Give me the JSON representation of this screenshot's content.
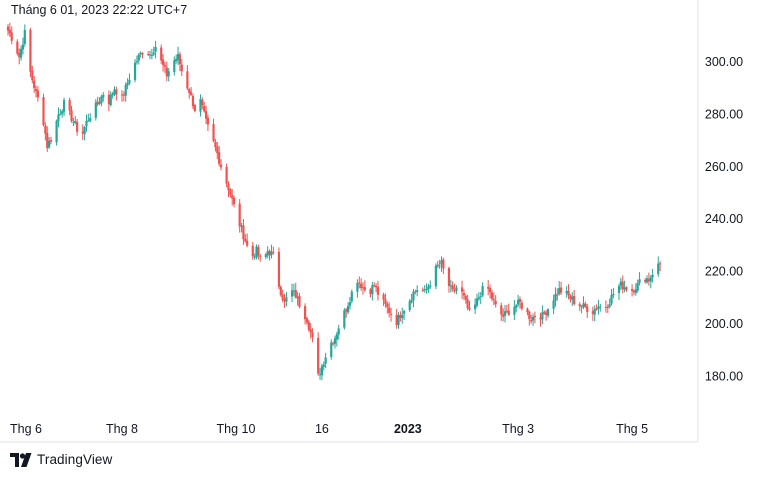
{
  "header": {
    "timestamp": "Tháng 6 01, 2023 22:22 UTC+7"
  },
  "brand": {
    "name": "TradingView",
    "logo": "tradingview-logo-icon"
  },
  "colors": {
    "up": "#26a69a",
    "down": "#ef5350",
    "axis_border": "#e0e3eb",
    "text": "#131722"
  },
  "chart_data": {
    "type": "candlestick",
    "title": "",
    "xlabel": "",
    "ylabel": "",
    "ylim": [
      168,
      316
    ],
    "grid": false,
    "y_ticks": [
      {
        "label": "300.00",
        "value": 300
      },
      {
        "label": "280.00",
        "value": 280
      },
      {
        "label": "260.00",
        "value": 260
      },
      {
        "label": "240.00",
        "value": 240
      },
      {
        "label": "220.00",
        "value": 220
      },
      {
        "label": "200.00",
        "value": 200
      },
      {
        "label": "180.00",
        "value": 180
      }
    ],
    "x_ticks": [
      {
        "label": "Thg 6",
        "date": "2022-06-01",
        "bold": false
      },
      {
        "label": "Thg 8",
        "date": "2022-08-01",
        "bold": false
      },
      {
        "label": "Thg 10",
        "date": "2022-10-01",
        "bold": false
      },
      {
        "label": "16",
        "date": "2022-11-16",
        "bold": false
      },
      {
        "label": "2023",
        "date": "2023-01-01",
        "bold": true
      },
      {
        "label": "Thg 3",
        "date": "2023-03-01",
        "bold": false
      },
      {
        "label": "Thg 5",
        "date": "2023-05-01",
        "bold": false
      }
    ],
    "x_range": [
      "2022-06-01",
      "2023-06-01"
    ],
    "close_path": [
      [
        "2022-06-01",
        312
      ],
      [
        "2022-06-04",
        308
      ],
      [
        "2022-06-07",
        302
      ],
      [
        "2022-06-10",
        311
      ],
      [
        "2022-06-13",
        296
      ],
      [
        "2022-06-16",
        288
      ],
      [
        "2022-06-19",
        282
      ],
      [
        "2022-06-22",
        268
      ],
      [
        "2022-06-25",
        272
      ],
      [
        "2022-06-28",
        280
      ],
      [
        "2022-07-01",
        284
      ],
      [
        "2022-07-04",
        280
      ],
      [
        "2022-07-07",
        276
      ],
      [
        "2022-07-10",
        271
      ],
      [
        "2022-07-13",
        277
      ],
      [
        "2022-07-16",
        281
      ],
      [
        "2022-07-19",
        284
      ],
      [
        "2022-07-22",
        288
      ],
      [
        "2022-07-25",
        285
      ],
      [
        "2022-07-28",
        290
      ],
      [
        "2022-08-01",
        286
      ],
      [
        "2022-08-04",
        292
      ],
      [
        "2022-08-07",
        298
      ],
      [
        "2022-08-10",
        302
      ],
      [
        "2022-08-13",
        305
      ],
      [
        "2022-08-16",
        303
      ],
      [
        "2022-08-19",
        306
      ],
      [
        "2022-08-22",
        300
      ],
      [
        "2022-08-25",
        295
      ],
      [
        "2022-08-28",
        300
      ],
      [
        "2022-08-31",
        302
      ],
      [
        "2022-09-03",
        294
      ],
      [
        "2022-09-06",
        289
      ],
      [
        "2022-09-09",
        282
      ],
      [
        "2022-09-12",
        285
      ],
      [
        "2022-09-15",
        277
      ],
      [
        "2022-09-18",
        271
      ],
      [
        "2022-09-21",
        265
      ],
      [
        "2022-09-24",
        258
      ],
      [
        "2022-09-27",
        252
      ],
      [
        "2022-09-30",
        245
      ],
      [
        "2022-10-03",
        238
      ],
      [
        "2022-10-06",
        232
      ],
      [
        "2022-10-09",
        225
      ],
      [
        "2022-10-12",
        228
      ],
      [
        "2022-10-15",
        223
      ],
      [
        "2022-10-18",
        228
      ],
      [
        "2022-10-21",
        226
      ],
      [
        "2022-10-24",
        215
      ],
      [
        "2022-10-27",
        208
      ],
      [
        "2022-10-30",
        213
      ],
      [
        "2022-11-02",
        211
      ],
      [
        "2022-11-05",
        206
      ],
      [
        "2022-11-08",
        202
      ],
      [
        "2022-11-11",
        194
      ],
      [
        "2022-11-14",
        180
      ],
      [
        "2022-11-17",
        186
      ],
      [
        "2022-11-20",
        192
      ],
      [
        "2022-11-23",
        195
      ],
      [
        "2022-11-26",
        201
      ],
      [
        "2022-11-29",
        206
      ],
      [
        "2022-12-02",
        212
      ],
      [
        "2022-12-05",
        217
      ],
      [
        "2022-12-08",
        214
      ],
      [
        "2022-12-11",
        212
      ],
      [
        "2022-12-14",
        215
      ],
      [
        "2022-12-17",
        210
      ],
      [
        "2022-12-20",
        207
      ],
      [
        "2022-12-23",
        204
      ],
      [
        "2022-12-26",
        201
      ],
      [
        "2022-12-29",
        205
      ],
      [
        "2023-01-01",
        208
      ],
      [
        "2023-01-04",
        212
      ],
      [
        "2023-01-07",
        214
      ],
      [
        "2023-01-10",
        212
      ],
      [
        "2023-01-13",
        216
      ],
      [
        "2023-01-16",
        221
      ],
      [
        "2023-01-19",
        223
      ],
      [
        "2023-01-22",
        216
      ],
      [
        "2023-01-25",
        212
      ],
      [
        "2023-01-28",
        215
      ],
      [
        "2023-01-31",
        210
      ],
      [
        "2023-02-03",
        204
      ],
      [
        "2023-02-06",
        207
      ],
      [
        "2023-02-09",
        212
      ],
      [
        "2023-02-12",
        215
      ],
      [
        "2023-02-15",
        210
      ],
      [
        "2023-02-18",
        205
      ],
      [
        "2023-02-21",
        203
      ],
      [
        "2023-02-24",
        205
      ],
      [
        "2023-02-27",
        207
      ],
      [
        "2023-03-02",
        208
      ],
      [
        "2023-03-05",
        205
      ],
      [
        "2023-03-08",
        202
      ],
      [
        "2023-03-11",
        204
      ],
      [
        "2023-03-14",
        203
      ],
      [
        "2023-03-17",
        206
      ],
      [
        "2023-03-20",
        210
      ],
      [
        "2023-03-23",
        213
      ],
      [
        "2023-03-26",
        212
      ],
      [
        "2023-03-29",
        210
      ],
      [
        "2023-04-01",
        208
      ],
      [
        "2023-04-04",
        207
      ],
      [
        "2023-04-07",
        206
      ],
      [
        "2023-04-10",
        205
      ],
      [
        "2023-04-13",
        207
      ],
      [
        "2023-04-16",
        206
      ],
      [
        "2023-04-19",
        209
      ],
      [
        "2023-04-22",
        213
      ],
      [
        "2023-04-25",
        215
      ],
      [
        "2023-04-28",
        214
      ],
      [
        "2023-05-01",
        213
      ],
      [
        "2023-05-04",
        215
      ],
      [
        "2023-05-07",
        218
      ],
      [
        "2023-05-10",
        217
      ],
      [
        "2023-05-13",
        221
      ],
      [
        "2023-05-16",
        223
      ]
    ]
  }
}
